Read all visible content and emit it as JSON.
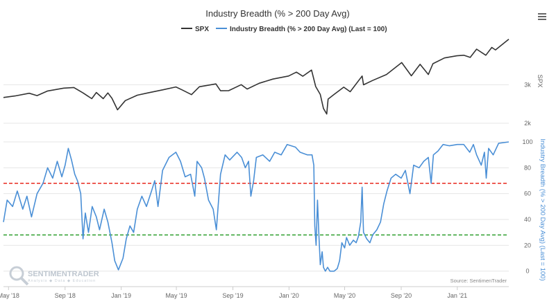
{
  "chart_data": {
    "type": "line",
    "title": "Industry Breadth (% > 200 Day Avg)",
    "legend": {
      "placement": "top-center",
      "entries": [
        "SPX",
        "Industry Breadth (% > 200 Day Avg) (Last = 100)"
      ]
    },
    "x_ticks": [
      "May '18",
      "Sep '18",
      "Jan '19",
      "May '19",
      "Sep '19",
      "Jan '20",
      "May '20",
      "Sep '20",
      "Jan '21"
    ],
    "x_range": [
      "2018-04-20",
      "2021-04-23"
    ],
    "panels": [
      {
        "name": "SPX",
        "y_axis_title": "SPX",
        "y_ticks": [
          "2k",
          "3k"
        ],
        "y_range": [
          2000,
          4200
        ],
        "series": [
          {
            "name": "SPX",
            "color": "#333333",
            "points": [
              [
                "2018-04-20",
                2670
              ],
              [
                "2018-05-15",
                2710
              ],
              [
                "2018-06-15",
                2780
              ],
              [
                "2018-07-02",
                2720
              ],
              [
                "2018-07-25",
                2840
              ],
              [
                "2018-08-29",
                2915
              ],
              [
                "2018-09-20",
                2930
              ],
              [
                "2018-10-10",
                2790
              ],
              [
                "2018-10-29",
                2640
              ],
              [
                "2018-11-08",
                2800
              ],
              [
                "2018-11-23",
                2640
              ],
              [
                "2018-12-03",
                2790
              ],
              [
                "2018-12-12",
                2650
              ],
              [
                "2018-12-24",
                2350
              ],
              [
                "2019-01-10",
                2590
              ],
              [
                "2019-02-05",
                2730
              ],
              [
                "2019-02-28",
                2790
              ],
              [
                "2019-04-01",
                2870
              ],
              [
                "2019-04-30",
                2945
              ],
              [
                "2019-05-15",
                2860
              ],
              [
                "2019-06-03",
                2745
              ],
              [
                "2019-06-20",
                2950
              ],
              [
                "2019-07-26",
                3025
              ],
              [
                "2019-08-05",
                2845
              ],
              [
                "2019-08-23",
                2850
              ],
              [
                "2019-09-19",
                3005
              ],
              [
                "2019-10-02",
                2890
              ],
              [
                "2019-10-28",
                3040
              ],
              [
                "2019-11-27",
                3150
              ],
              [
                "2019-12-31",
                3230
              ],
              [
                "2020-01-17",
                3330
              ],
              [
                "2020-01-31",
                3225
              ],
              [
                "2020-02-19",
                3385
              ],
              [
                "2020-02-28",
                2955
              ],
              [
                "2020-03-09",
                2750
              ],
              [
                "2020-03-16",
                2385
              ],
              [
                "2020-03-23",
                2240
              ],
              [
                "2020-03-26",
                2630
              ],
              [
                "2020-04-08",
                2750
              ],
              [
                "2020-04-29",
                2940
              ],
              [
                "2020-05-13",
                2820
              ],
              [
                "2020-06-08",
                3230
              ],
              [
                "2020-06-11",
                3000
              ],
              [
                "2020-07-01",
                3115
              ],
              [
                "2020-07-31",
                3270
              ],
              [
                "2020-09-02",
                3580
              ],
              [
                "2020-09-23",
                3235
              ],
              [
                "2020-10-12",
                3535
              ],
              [
                "2020-10-30",
                3270
              ],
              [
                "2020-11-09",
                3550
              ],
              [
                "2020-12-04",
                3700
              ],
              [
                "2020-12-31",
                3756
              ],
              [
                "2021-01-15",
                3770
              ],
              [
                "2021-01-29",
                3715
              ],
              [
                "2021-02-12",
                3930
              ],
              [
                "2021-03-04",
                3770
              ],
              [
                "2021-03-17",
                3975
              ],
              [
                "2021-03-25",
                3910
              ],
              [
                "2021-04-23",
                4190
              ]
            ]
          }
        ]
      },
      {
        "name": "Industry Breadth",
        "y_axis_title": "Industry Breadth (% > 200 Day Avg) (Last = 100)",
        "y_ticks": [
          "0",
          "20",
          "40",
          "60",
          "80",
          "100"
        ],
        "y_range": [
          -5,
          100
        ],
        "reference_lines": [
          {
            "value": 68,
            "color": "#e8271e"
          },
          {
            "value": 28,
            "color": "#2e9e2e"
          }
        ],
        "series": [
          {
            "name": "Industry Breadth (% > 200 Day Avg) (Last = 100)",
            "color": "#4a8fd6",
            "points": [
              [
                "2018-04-20",
                38
              ],
              [
                "2018-04-28",
                55
              ],
              [
                "2018-05-10",
                50
              ],
              [
                "2018-05-20",
                62
              ],
              [
                "2018-06-01",
                48
              ],
              [
                "2018-06-10",
                58
              ],
              [
                "2018-06-20",
                42
              ],
              [
                "2018-07-02",
                60
              ],
              [
                "2018-07-15",
                68
              ],
              [
                "2018-07-25",
                80
              ],
              [
                "2018-08-05",
                72
              ],
              [
                "2018-08-15",
                85
              ],
              [
                "2018-08-25",
                73
              ],
              [
                "2018-09-01",
                82
              ],
              [
                "2018-09-08",
                95
              ],
              [
                "2018-09-15",
                86
              ],
              [
                "2018-09-22",
                75
              ],
              [
                "2018-09-28",
                70
              ],
              [
                "2018-10-05",
                60
              ],
              [
                "2018-10-10",
                25
              ],
              [
                "2018-10-15",
                45
              ],
              [
                "2018-10-22",
                30
              ],
              [
                "2018-10-30",
                50
              ],
              [
                "2018-11-08",
                42
              ],
              [
                "2018-11-15",
                32
              ],
              [
                "2018-11-25",
                48
              ],
              [
                "2018-12-03",
                38
              ],
              [
                "2018-12-12",
                22
              ],
              [
                "2018-12-18",
                8
              ],
              [
                "2018-12-26",
                1
              ],
              [
                "2019-01-05",
                10
              ],
              [
                "2019-01-12",
                25
              ],
              [
                "2019-01-20",
                35
              ],
              [
                "2019-01-28",
                30
              ],
              [
                "2019-02-05",
                48
              ],
              [
                "2019-02-15",
                58
              ],
              [
                "2019-02-25",
                50
              ],
              [
                "2019-03-08",
                62
              ],
              [
                "2019-03-15",
                70
              ],
              [
                "2019-03-22",
                50
              ],
              [
                "2019-04-01",
                78
              ],
              [
                "2019-04-15",
                88
              ],
              [
                "2019-04-30",
                92
              ],
              [
                "2019-05-10",
                85
              ],
              [
                "2019-05-20",
                73
              ],
              [
                "2019-06-01",
                75
              ],
              [
                "2019-06-10",
                58
              ],
              [
                "2019-06-15",
                85
              ],
              [
                "2019-06-25",
                80
              ],
              [
                "2019-07-01",
                72
              ],
              [
                "2019-07-10",
                55
              ],
              [
                "2019-07-20",
                48
              ],
              [
                "2019-07-27",
                32
              ],
              [
                "2019-08-05",
                75
              ],
              [
                "2019-08-15",
                90
              ],
              [
                "2019-08-25",
                86
              ],
              [
                "2019-09-10",
                92
              ],
              [
                "2019-09-20",
                88
              ],
              [
                "2019-09-28",
                80
              ],
              [
                "2019-10-05",
                85
              ],
              [
                "2019-10-10",
                58
              ],
              [
                "2019-10-16",
                70
              ],
              [
                "2019-10-22",
                88
              ],
              [
                "2019-11-05",
                90
              ],
              [
                "2019-11-20",
                85
              ],
              [
                "2019-12-01",
                92
              ],
              [
                "2019-12-15",
                90
              ],
              [
                "2019-12-28",
                98
              ],
              [
                "2020-01-15",
                96
              ],
              [
                "2020-01-25",
                92
              ],
              [
                "2020-02-10",
                90
              ],
              [
                "2020-02-20",
                90
              ],
              [
                "2020-02-24",
                82
              ],
              [
                "2020-02-26",
                35
              ],
              [
                "2020-02-29",
                20
              ],
              [
                "2020-03-03",
                55
              ],
              [
                "2020-03-06",
                28
              ],
              [
                "2020-03-09",
                5
              ],
              [
                "2020-03-13",
                15
              ],
              [
                "2020-03-16",
                3
              ],
              [
                "2020-03-20",
                0
              ],
              [
                "2020-03-25",
                3
              ],
              [
                "2020-03-30",
                0
              ],
              [
                "2020-04-08",
                0
              ],
              [
                "2020-04-15",
                2
              ],
              [
                "2020-04-20",
                8
              ],
              [
                "2020-04-25",
                22
              ],
              [
                "2020-05-01",
                18
              ],
              [
                "2020-05-05",
                26
              ],
              [
                "2020-05-12",
                20
              ],
              [
                "2020-05-20",
                24
              ],
              [
                "2020-05-26",
                22
              ],
              [
                "2020-05-31",
                27
              ],
              [
                "2020-06-05",
                38
              ],
              [
                "2020-06-08",
                65
              ],
              [
                "2020-06-11",
                30
              ],
              [
                "2020-06-18",
                25
              ],
              [
                "2020-06-25",
                22
              ],
              [
                "2020-07-01",
                28
              ],
              [
                "2020-07-10",
                32
              ],
              [
                "2020-07-18",
                38
              ],
              [
                "2020-07-25",
                52
              ],
              [
                "2020-08-01",
                62
              ],
              [
                "2020-08-10",
                72
              ],
              [
                "2020-08-20",
                75
              ],
              [
                "2020-09-01",
                72
              ],
              [
                "2020-09-10",
                78
              ],
              [
                "2020-09-20",
                60
              ],
              [
                "2020-09-28",
                82
              ],
              [
                "2020-10-10",
                80
              ],
              [
                "2020-10-20",
                85
              ],
              [
                "2020-10-30",
                88
              ],
              [
                "2020-11-05",
                68
              ],
              [
                "2020-11-10",
                90
              ],
              [
                "2020-11-20",
                93
              ],
              [
                "2020-12-01",
                98
              ],
              [
                "2020-12-15",
                97
              ],
              [
                "2021-01-01",
                98
              ],
              [
                "2021-01-15",
                98
              ],
              [
                "2021-01-28",
                92
              ],
              [
                "2021-02-05",
                98
              ],
              [
                "2021-02-12",
                90
              ],
              [
                "2021-02-22",
                82
              ],
              [
                "2021-03-01",
                92
              ],
              [
                "2021-03-05",
                72
              ],
              [
                "2021-03-10",
                95
              ],
              [
                "2021-03-20",
                90
              ],
              [
                "2021-04-01",
                99
              ],
              [
                "2021-04-23",
                100
              ]
            ]
          }
        ]
      }
    ],
    "source": "Source: SentimenTrader",
    "watermark": {
      "name": "SENTIMENTRADER",
      "tagline": "Analysis ◆ Data ◆ Education"
    },
    "grid": {
      "horizontal": true,
      "vertical": false
    }
  },
  "ui": {
    "menu_icon": "hamburger-menu-icon",
    "colors": {
      "spx_line": "#333333",
      "breadth_line": "#4a8fd6",
      "upper_ref": "#e8271e",
      "lower_ref": "#2e9e2e",
      "grid": "#e6e6e6",
      "breadth_axis_title": "#4a8fd6"
    }
  }
}
